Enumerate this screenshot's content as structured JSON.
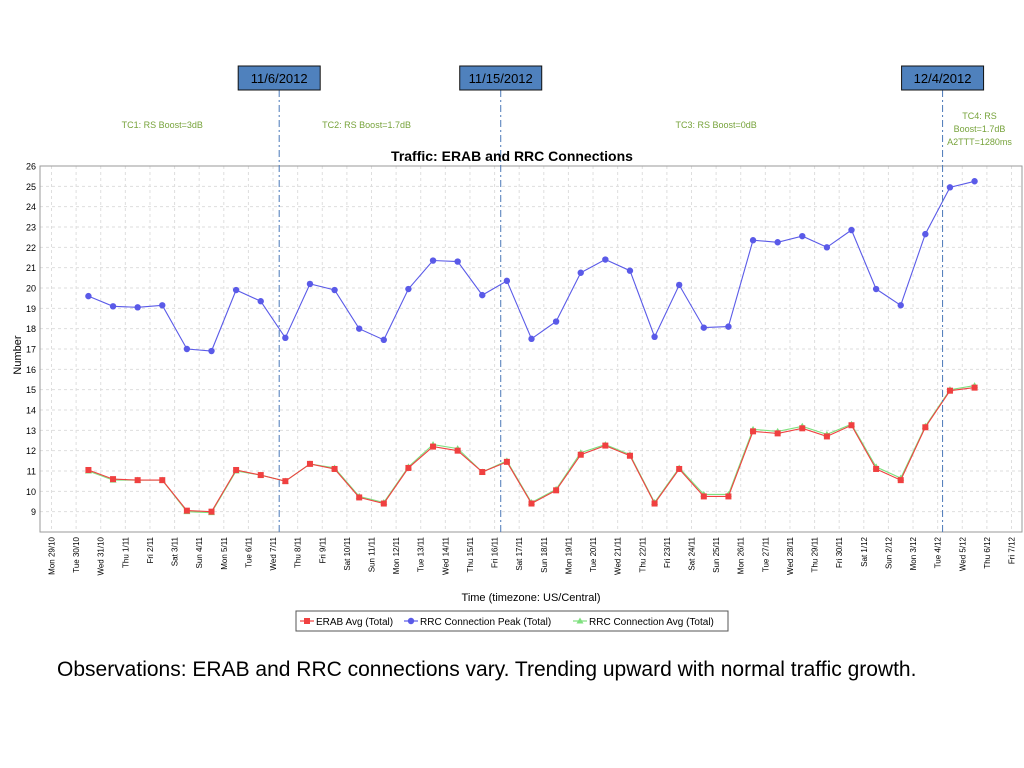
{
  "chart_data": {
    "type": "line",
    "title": "Traffic: ERAB and RRC Connections",
    "xlabel": "Time (timezone: US/Central)",
    "ylabel": "Number",
    "ylim": [
      8,
      26
    ],
    "y_ticks": [
      9,
      10,
      11,
      12,
      13,
      14,
      15,
      16,
      17,
      18,
      19,
      20,
      21,
      22,
      23,
      24,
      25,
      26
    ],
    "grid": true,
    "legend_position": "bottom",
    "x_tick_labels": [
      "Mon 29/10",
      "Tue 30/10",
      "Wed 31/10",
      "Thu 1/11",
      "Fri 2/11",
      "Sat 3/11",
      "Sun 4/11",
      "Mon 5/11",
      "Tue 6/11",
      "Wed 7/11",
      "Thu 8/11",
      "Fri 9/11",
      "Sat 10/11",
      "Sun 11/11",
      "Mon 12/11",
      "Tue 13/11",
      "Wed 14/11",
      "Thu 15/11",
      "Fri 16/11",
      "Sat 17/11",
      "Sun 18/11",
      "Mon 19/11",
      "Tue 20/11",
      "Wed 21/11",
      "Thu 22/11",
      "Fri 23/11",
      "Sat 24/11",
      "Sun 25/11",
      "Mon 26/11",
      "Tue 27/11",
      "Wed 28/11",
      "Thu 29/11",
      "Fri 30/11",
      "Sat 1/12",
      "Sun 2/12",
      "Mon 3/12",
      "Tue 4/12",
      "Wed 5/12",
      "Thu 6/12",
      "Fri 7/12"
    ],
    "x_day_range": [
      0,
      39
    ],
    "series": [
      {
        "name": "ERAB Avg (Total)",
        "color": "#f04040",
        "marker": "square",
        "points": [
          [
            1.5,
            11.05
          ],
          [
            2.5,
            10.6
          ],
          [
            3.5,
            10.55
          ],
          [
            4.5,
            10.55
          ],
          [
            5.5,
            9.05
          ],
          [
            6.5,
            9.0
          ],
          [
            7.5,
            11.05
          ],
          [
            8.5,
            10.8
          ],
          [
            9.5,
            10.5
          ],
          [
            10.5,
            11.35
          ],
          [
            11.5,
            11.1
          ],
          [
            12.5,
            9.7
          ],
          [
            13.5,
            9.4
          ],
          [
            14.5,
            11.15
          ],
          [
            15.5,
            12.2
          ],
          [
            16.5,
            12.0
          ],
          [
            17.5,
            10.95
          ],
          [
            18.5,
            11.45
          ],
          [
            19.5,
            9.4
          ],
          [
            20.5,
            10.05
          ],
          [
            21.5,
            11.8
          ],
          [
            22.5,
            12.25
          ],
          [
            23.5,
            11.75
          ],
          [
            24.5,
            9.4
          ],
          [
            25.5,
            11.1
          ],
          [
            26.5,
            9.75
          ],
          [
            27.5,
            9.75
          ],
          [
            28.5,
            12.95
          ],
          [
            29.5,
            12.85
          ],
          [
            30.5,
            13.1
          ],
          [
            31.5,
            12.7
          ],
          [
            32.5,
            13.25
          ],
          [
            33.5,
            11.1
          ],
          [
            34.5,
            10.55
          ],
          [
            35.5,
            13.15
          ],
          [
            36.5,
            14.95
          ],
          [
            37.5,
            15.1
          ]
        ]
      },
      {
        "name": "RRC Connection Peak (Total)",
        "color": "#5a5ae8",
        "marker": "circle",
        "points": [
          [
            1.5,
            19.6
          ],
          [
            2.5,
            19.1
          ],
          [
            3.5,
            19.05
          ],
          [
            4.5,
            19.15
          ],
          [
            5.5,
            17.0
          ],
          [
            6.5,
            16.9
          ],
          [
            7.5,
            19.9
          ],
          [
            8.5,
            19.35
          ],
          [
            9.5,
            17.55
          ],
          [
            10.5,
            20.2
          ],
          [
            11.5,
            19.9
          ],
          [
            12.5,
            18.0
          ],
          [
            13.5,
            17.45
          ],
          [
            14.5,
            19.95
          ],
          [
            15.5,
            21.35
          ],
          [
            16.5,
            21.3
          ],
          [
            17.5,
            19.65
          ],
          [
            18.5,
            20.35
          ],
          [
            19.5,
            17.5
          ],
          [
            20.5,
            18.35
          ],
          [
            21.5,
            20.75
          ],
          [
            22.5,
            21.4
          ],
          [
            23.5,
            20.85
          ],
          [
            24.5,
            17.6
          ],
          [
            25.5,
            20.15
          ],
          [
            26.5,
            18.05
          ],
          [
            27.5,
            18.1
          ],
          [
            28.5,
            22.35
          ],
          [
            29.5,
            22.25
          ],
          [
            30.5,
            22.55
          ],
          [
            31.5,
            22.0
          ],
          [
            32.5,
            22.85
          ],
          [
            33.5,
            19.95
          ],
          [
            34.5,
            19.15
          ],
          [
            35.5,
            22.65
          ],
          [
            36.5,
            24.95
          ],
          [
            37.5,
            25.25
          ]
        ]
      },
      {
        "name": "RRC Connection Avg (Total)",
        "color": "#7ee07e",
        "marker": "triangle",
        "points": [
          [
            1.5,
            11.0
          ],
          [
            2.5,
            10.55
          ],
          [
            3.5,
            10.55
          ],
          [
            4.5,
            10.55
          ],
          [
            5.5,
            9.0
          ],
          [
            6.5,
            8.95
          ],
          [
            7.5,
            11.0
          ],
          [
            8.5,
            10.8
          ],
          [
            9.5,
            10.5
          ],
          [
            10.5,
            11.35
          ],
          [
            11.5,
            11.15
          ],
          [
            12.5,
            9.75
          ],
          [
            13.5,
            9.45
          ],
          [
            14.5,
            11.2
          ],
          [
            15.5,
            12.3
          ],
          [
            16.5,
            12.1
          ],
          [
            17.5,
            10.95
          ],
          [
            18.5,
            11.5
          ],
          [
            19.5,
            9.45
          ],
          [
            20.5,
            10.1
          ],
          [
            21.5,
            11.9
          ],
          [
            22.5,
            12.3
          ],
          [
            23.5,
            11.8
          ],
          [
            24.5,
            9.45
          ],
          [
            25.5,
            11.15
          ],
          [
            26.5,
            9.85
          ],
          [
            27.5,
            9.85
          ],
          [
            28.5,
            13.05
          ],
          [
            29.5,
            12.95
          ],
          [
            30.5,
            13.2
          ],
          [
            31.5,
            12.8
          ],
          [
            32.5,
            13.3
          ],
          [
            33.5,
            11.2
          ],
          [
            34.5,
            10.65
          ],
          [
            35.5,
            13.2
          ],
          [
            36.5,
            15.0
          ],
          [
            37.5,
            15.2
          ]
        ]
      }
    ],
    "markers": [
      {
        "label": "11/6/2012",
        "day": 9.25
      },
      {
        "label": "11/15/2012",
        "day": 18.25
      },
      {
        "label": "12/4/2012",
        "day": 36.2
      }
    ],
    "annotations": [
      {
        "lines": [
          "TC1: RS Boost=3dB"
        ],
        "day": 4.5
      },
      {
        "lines": [
          "TC2: RS Boost=1.7dB"
        ],
        "day": 12.8
      },
      {
        "lines": [
          "TC3: RS Boost=0dB"
        ],
        "day": 27.0
      },
      {
        "lines": [
          "TC4: RS",
          "Boost=1.7dB",
          "A2TTT=1280ms"
        ],
        "day": 37.7
      }
    ]
  },
  "observations": "Observations:  ERAB and RRC connections vary.  Trending upward with normal traffic growth."
}
